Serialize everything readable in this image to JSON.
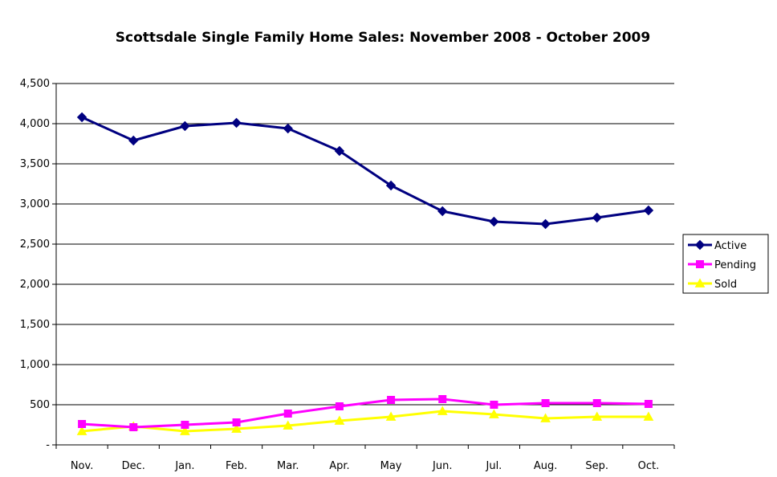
{
  "chart_data": {
    "type": "line",
    "title": "Scottsdale Single Family Home Sales: November 2008 - October 2009",
    "xlabel": "",
    "ylabel": "",
    "categories": [
      "Nov.",
      "Dec.",
      "Jan.",
      "Feb.",
      "Mar.",
      "Apr.",
      "May",
      "Jun.",
      "Jul.",
      "Aug.",
      "Sep.",
      "Oct."
    ],
    "y_ticks": [
      "-",
      "500",
      "1,000",
      "1,500",
      "2,000",
      "2,500",
      "3,000",
      "3,500",
      "4,000",
      "4,500"
    ],
    "ylim": [
      0,
      4500
    ],
    "grid": "horizontal",
    "legend_position": "right",
    "series": [
      {
        "name": "Active",
        "color": "#000080",
        "marker": "diamond",
        "values": [
          4080,
          3790,
          3970,
          4010,
          3940,
          3660,
          3230,
          2910,
          2780,
          2750,
          2830,
          2920
        ]
      },
      {
        "name": "Pending",
        "color": "#FF00FF",
        "marker": "square",
        "values": [
          260,
          220,
          250,
          280,
          390,
          480,
          560,
          570,
          500,
          520,
          520,
          510
        ]
      },
      {
        "name": "Sold",
        "color": "#FFFF00",
        "marker": "triangle",
        "values": [
          170,
          230,
          170,
          200,
          240,
          300,
          350,
          420,
          380,
          330,
          350,
          350
        ]
      }
    ]
  }
}
